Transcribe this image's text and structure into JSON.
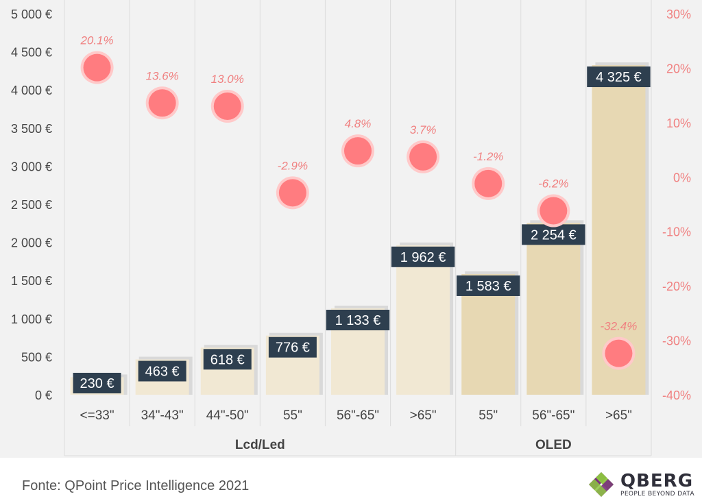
{
  "chart_data": {
    "type": "bar",
    "title": "",
    "xlabel": "",
    "ylabel": "",
    "categories": [
      "<=33\"",
      "34\"-43\"",
      "44\"-50\"",
      "55\"",
      "56\"-65\"",
      ">65\"",
      "55\"",
      "56\"-65\"",
      ">65\""
    ],
    "groups": [
      {
        "label": "Lcd/Led",
        "start": 0,
        "end": 5
      },
      {
        "label": "OLED",
        "start": 6,
        "end": 8
      }
    ],
    "series": [
      {
        "axis": "left",
        "values": [
          230,
          463,
          618,
          776,
          1133,
          1962,
          1583,
          2254,
          4325
        ],
        "labels": [
          "230 €",
          "463 €",
          "618 €",
          "776 €",
          "1 133 €",
          "1 962 €",
          "1 583 €",
          "2 254 €",
          "4 325 €"
        ]
      },
      {
        "axis": "right",
        "type": "scatter",
        "values": [
          20.1,
          13.6,
          13.0,
          -2.9,
          4.8,
          3.7,
          -1.2,
          -6.2,
          -32.4
        ],
        "labels": [
          "20.1%",
          "13.6%",
          "13.0%",
          "-2.9%",
          "4.8%",
          "3.7%",
          "-1.2%",
          "-6.2%",
          "-32.4%"
        ]
      }
    ],
    "y_left": {
      "range": [
        0,
        5000
      ],
      "ticks": [
        0,
        500,
        1000,
        1500,
        2000,
        2500,
        3000,
        3500,
        4000,
        4500,
        5000
      ],
      "tick_labels": [
        "0 €",
        "500 €",
        "1 000 €",
        "1 500 €",
        "2 000 €",
        "2 500 €",
        "3 000 €",
        "3 500 €",
        "4 000 €",
        "4 500 €",
        "5 000 €"
      ]
    },
    "y_right": {
      "range": [
        -40,
        30
      ],
      "ticks": [
        -40,
        -30,
        -20,
        -10,
        0,
        10,
        20,
        30
      ],
      "tick_labels": [
        "-40%",
        "-30%",
        "-20%",
        "-10%",
        "0%",
        "10%",
        "20%",
        "30%"
      ]
    },
    "grid": "vertical",
    "colors": {
      "background": "#f2f2f2",
      "bar_lcd": "#f1e8d3",
      "bar_oled": "#e7d8b3",
      "bar_shadow": "#d9d9d9",
      "label_box": "#2e3f4f",
      "label_text": "#ffffff",
      "dot": "#ff7c80",
      "dot_halo": "#ffc9c9",
      "pct_text": "#f08080",
      "axis_text": "#444444",
      "grid": "#dcdcdc"
    }
  },
  "footer": {
    "source": "Fonte: QPoint Price Intelligence 2021",
    "logo_name": "QBERG",
    "logo_tagline": "PEOPLE BEYOND DATA"
  }
}
